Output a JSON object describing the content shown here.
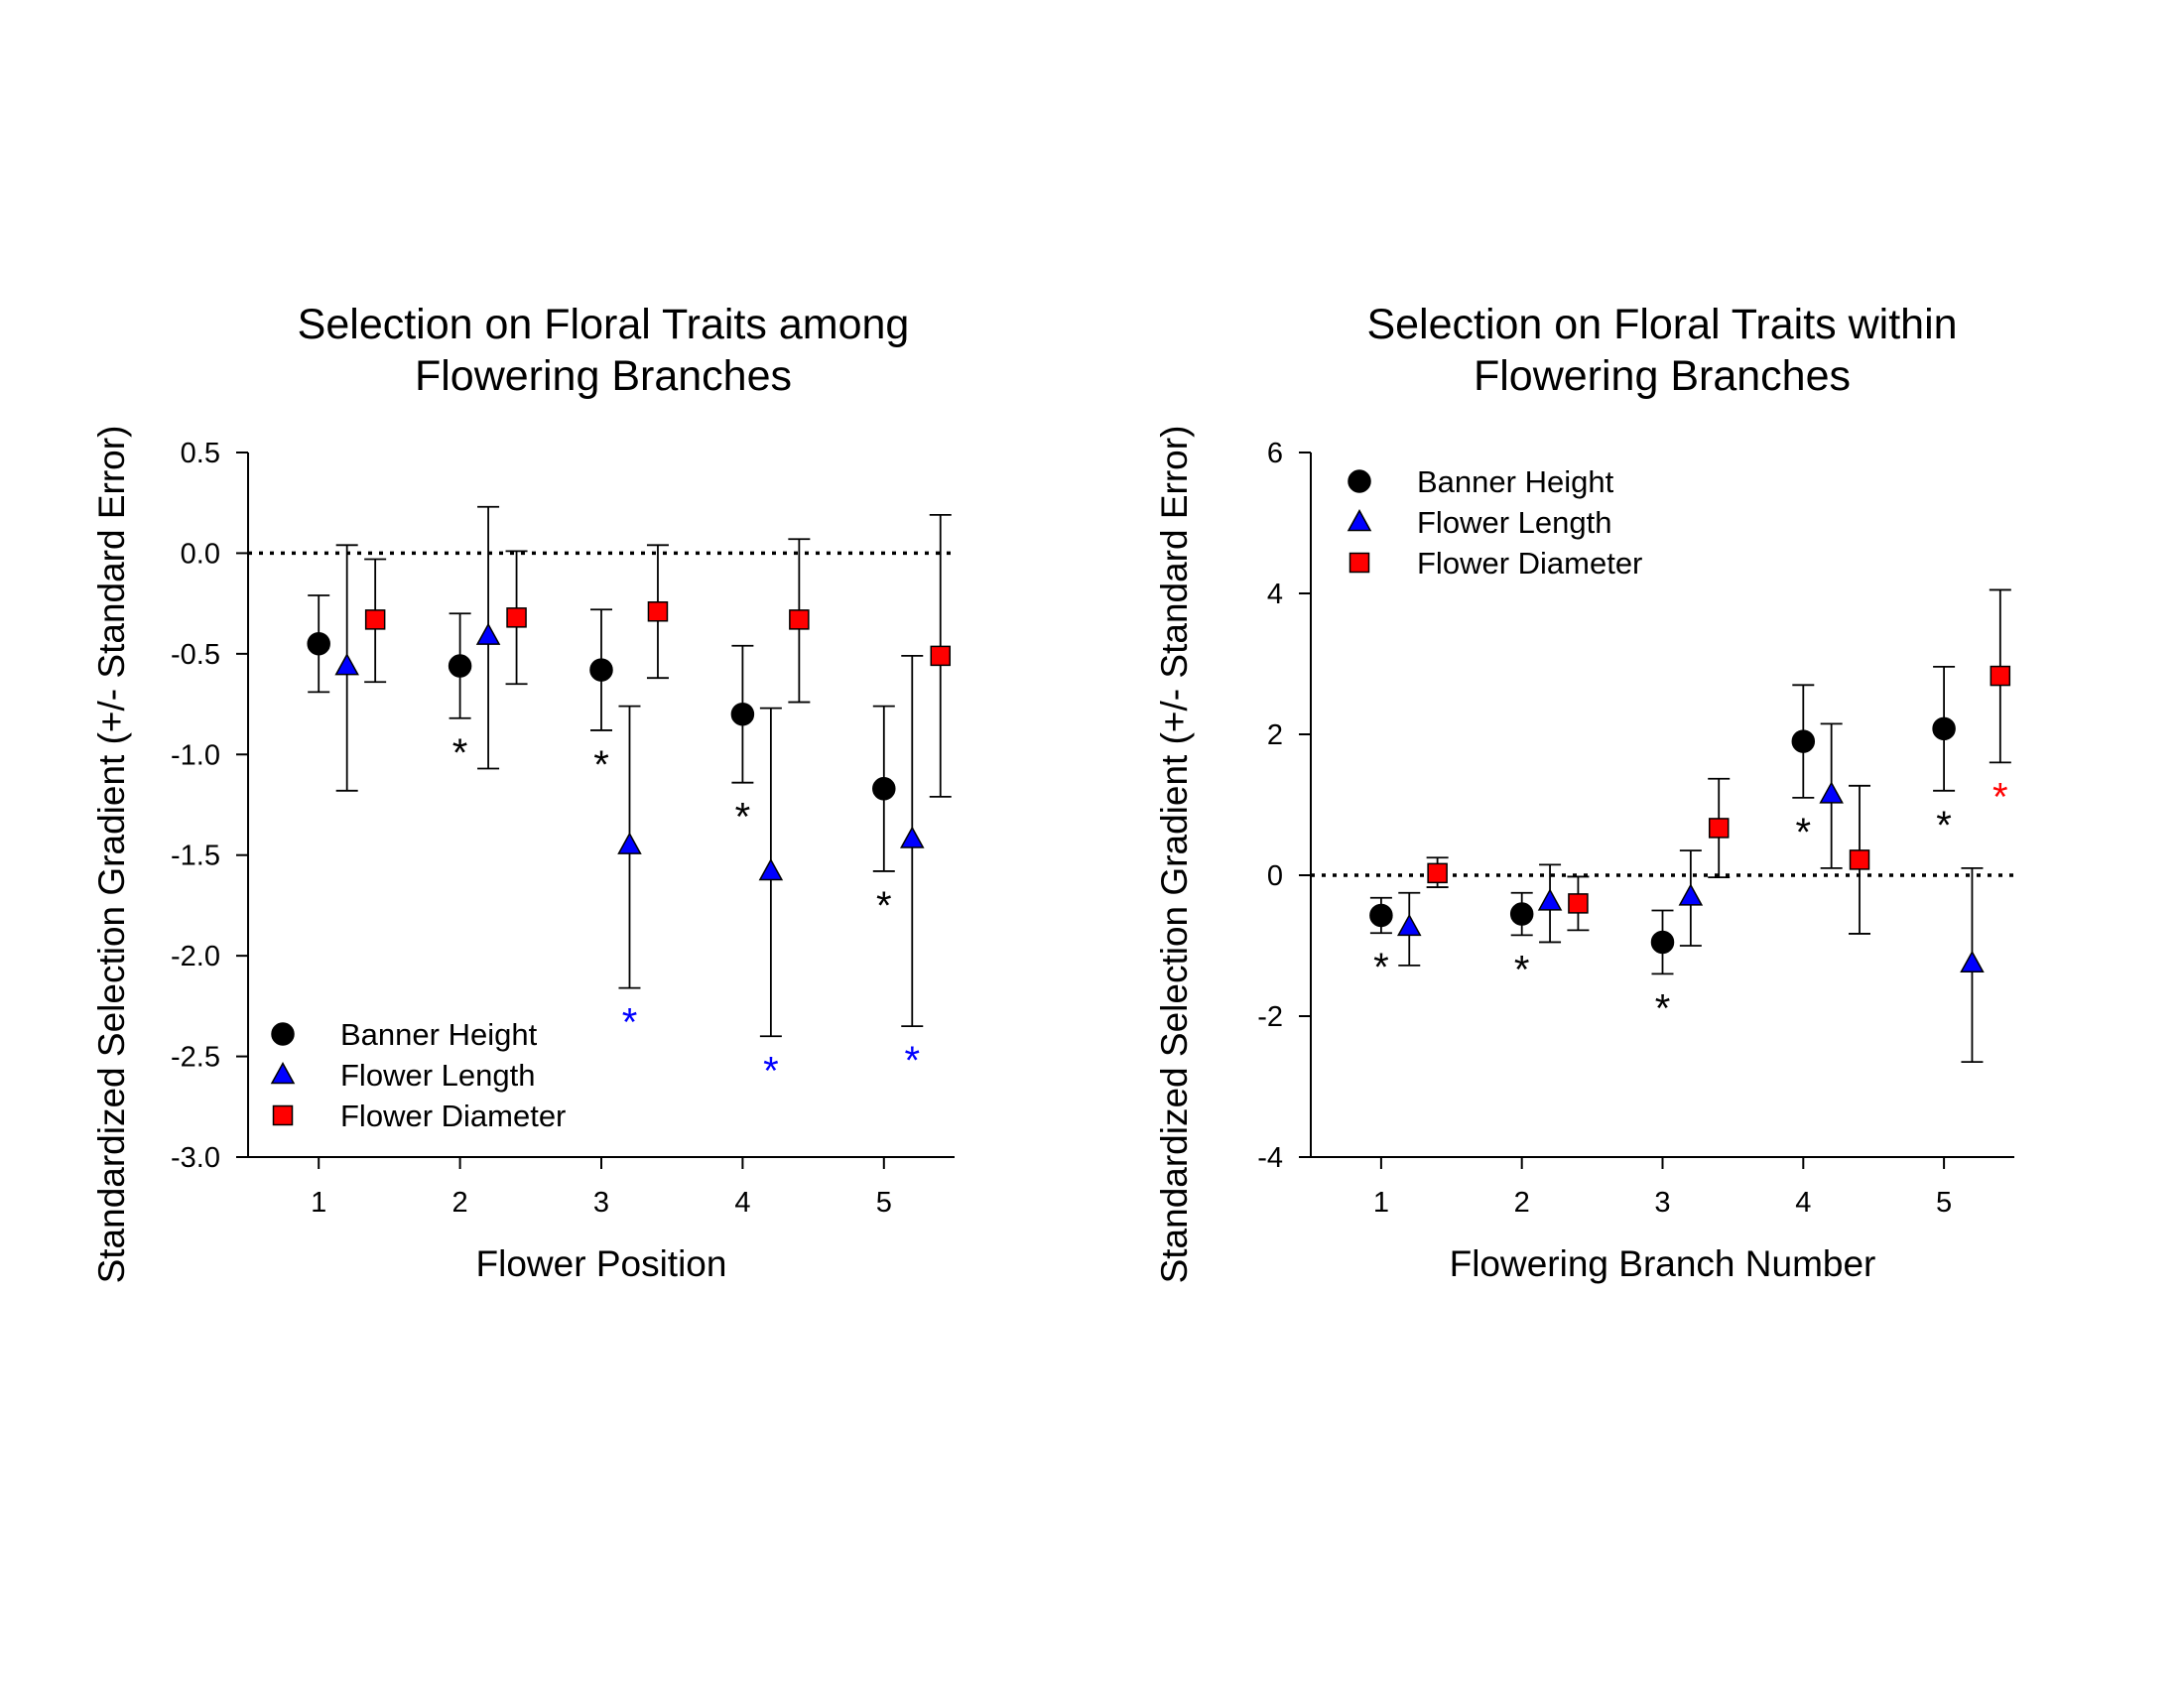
{
  "chart_data": [
    {
      "type": "scatter",
      "title_lines": [
        "Selection on Floral Traits among",
        "Flowering Branches"
      ],
      "xlabel": "Flower Position",
      "ylabel": "Standardized Selection Gradient (+/- Standard Error)",
      "categories": [
        "1",
        "2",
        "3",
        "4",
        "5"
      ],
      "xlim": [
        0.5,
        5.5
      ],
      "ylim": [
        -3.0,
        0.5
      ],
      "yticks": [
        -3.0,
        -2.5,
        -2.0,
        -1.5,
        -1.0,
        -0.5,
        0.0,
        0.5
      ],
      "ytick_labels": [
        "-3.0",
        "-2.5",
        "-2.0",
        "-1.5",
        "-1.0",
        "-0.5",
        "0.0",
        "0.5"
      ],
      "reference_line": 0,
      "legend_position": "bottom-left",
      "series": [
        {
          "name": "Banner Height",
          "marker": "circle",
          "color": "#000000",
          "x_offset": 0,
          "values": [
            -0.45,
            -0.56,
            -0.58,
            -0.8,
            -1.17
          ],
          "lower": [
            -0.69,
            -0.82,
            -0.88,
            -1.14,
            -1.58
          ],
          "upper": [
            -0.21,
            -0.3,
            -0.28,
            -0.46,
            -0.76
          ],
          "significant": [
            false,
            true,
            true,
            true,
            true
          ]
        },
        {
          "name": "Flower Length",
          "marker": "triangle",
          "color": "#0000ff",
          "x_offset": 0.2,
          "values": [
            -0.56,
            -0.41,
            -1.45,
            -1.58,
            -1.42
          ],
          "lower": [
            -1.18,
            -1.07,
            -2.16,
            -2.4,
            -2.35
          ],
          "upper": [
            0.04,
            0.23,
            -0.76,
            -0.77,
            -0.51
          ],
          "significant": [
            false,
            false,
            true,
            true,
            true
          ]
        },
        {
          "name": "Flower Diameter",
          "marker": "square",
          "color": "#ff0000",
          "x_offset": 0.4,
          "values": [
            -0.33,
            -0.32,
            -0.29,
            -0.33,
            -0.51
          ],
          "lower": [
            -0.64,
            -0.65,
            -0.62,
            -0.74,
            -1.21
          ],
          "upper": [
            -0.03,
            0.01,
            0.04,
            0.07,
            0.19
          ],
          "significant": [
            false,
            false,
            false,
            false,
            false
          ]
        }
      ],
      "marker_x_shift": [
        0,
        0,
        0,
        0,
        0
      ],
      "significance_label": "*"
    },
    {
      "type": "scatter",
      "title_lines": [
        "Selection on Floral Traits within",
        "Flowering Branches"
      ],
      "xlabel": "Flowering Branch Number",
      "ylabel": "Standardized Selection Gradient (+/- Standard Error)",
      "categories": [
        "1",
        "2",
        "3",
        "4",
        "5"
      ],
      "xlim": [
        0.5,
        5.5
      ],
      "ylim": [
        -4,
        6
      ],
      "yticks": [
        -4,
        -2,
        0,
        2,
        4,
        6
      ],
      "ytick_labels": [
        "-4",
        "-2",
        "0",
        "2",
        "4",
        "6"
      ],
      "reference_line": 0,
      "legend_position": "top-left",
      "series": [
        {
          "name": "Banner Height",
          "marker": "circle",
          "color": "#000000",
          "x_offset": 0,
          "values": [
            -0.57,
            -0.55,
            -0.95,
            1.9,
            2.08
          ],
          "lower": [
            -0.82,
            -0.85,
            -1.4,
            1.1,
            1.2
          ],
          "upper": [
            -0.32,
            -0.25,
            -0.5,
            2.7,
            2.96
          ],
          "significant": [
            true,
            true,
            true,
            true,
            true
          ]
        },
        {
          "name": "Flower Length",
          "marker": "triangle",
          "color": "#0000ff",
          "x_offset": 0.2,
          "values": [
            -0.73,
            -0.37,
            -0.3,
            1.15,
            -1.25
          ],
          "lower": [
            -1.28,
            -0.95,
            -1.0,
            0.1,
            -2.65
          ],
          "upper": [
            -0.25,
            0.15,
            0.35,
            2.15,
            0.1
          ],
          "significant": [
            false,
            false,
            false,
            false,
            false
          ]
        },
        {
          "name": "Flower Diameter",
          "marker": "square",
          "color": "#ff0000",
          "x_offset": 0.4,
          "values": [
            0.03,
            -0.4,
            0.67,
            0.22,
            2.83
          ],
          "lower": [
            -0.17,
            -0.78,
            -0.03,
            -0.83,
            1.6
          ],
          "upper": [
            0.25,
            -0.02,
            1.37,
            1.27,
            4.05
          ],
          "significant": [
            false,
            false,
            false,
            false,
            true
          ]
        }
      ],
      "significance_label": "*"
    }
  ]
}
